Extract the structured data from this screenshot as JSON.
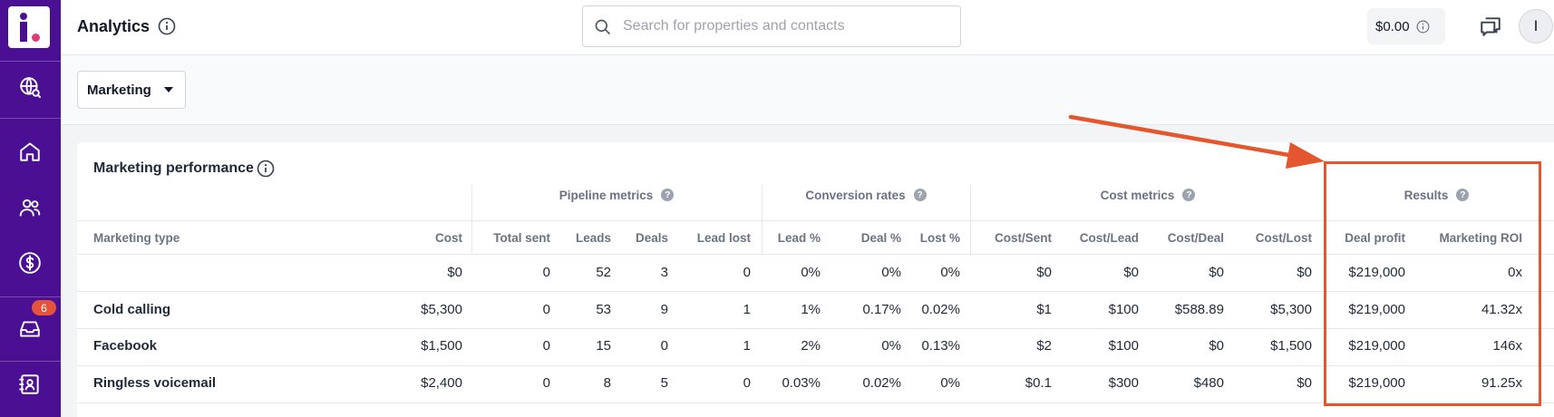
{
  "app": {
    "page_title": "Analytics",
    "accent": "#4b0f93",
    "inbox_badge": "6"
  },
  "sidebar": {
    "items": [
      {
        "name": "globe-search-icon"
      },
      {
        "name": "home-icon"
      },
      {
        "name": "users-icon"
      },
      {
        "name": "dollar-icon"
      },
      {
        "name": "inbox-icon"
      },
      {
        "name": "contacts-icon"
      }
    ]
  },
  "header": {
    "search_placeholder": "Search for properties and contacts",
    "search_value": "",
    "balance": "$0.00",
    "avatar_initial": "I"
  },
  "filter": {
    "selected": "Marketing"
  },
  "card": {
    "title": "Marketing performance",
    "groups": {
      "pipeline": "Pipeline metrics",
      "conversion": "Conversion rates",
      "cost": "Cost metrics",
      "results": "Results",
      "help_glyph": "?"
    },
    "columns": [
      "Marketing type",
      "Cost",
      "Total sent",
      "Leads",
      "Deals",
      "Lead lost",
      "Lead %",
      "Deal %",
      "Lost %",
      "Cost/Sent",
      "Cost/Lead",
      "Cost/Deal",
      "Cost/Lost",
      "Deal profit",
      "Marketing ROI"
    ],
    "rows": [
      [
        "",
        "$0",
        "0",
        "52",
        "3",
        "0",
        "0%",
        "0%",
        "0%",
        "$0",
        "$0",
        "$0",
        "$0",
        "$219,000",
        "0x"
      ],
      [
        "Cold calling",
        "$5,300",
        "0",
        "53",
        "9",
        "1",
        "1%",
        "0.17%",
        "0.02%",
        "$1",
        "$100",
        "$588.89",
        "$5,300",
        "$219,000",
        "41.32x"
      ],
      [
        "Facebook",
        "$1,500",
        "0",
        "15",
        "0",
        "1",
        "2%",
        "0%",
        "0.13%",
        "$2",
        "$100",
        "$0",
        "$1,500",
        "$219,000",
        "146x"
      ],
      [
        "Ringless voicemail",
        "$2,400",
        "0",
        "8",
        "5",
        "0",
        "0.03%",
        "0.02%",
        "0%",
        "$0.1",
        "$300",
        "$480",
        "$0",
        "$219,000",
        "91.25x"
      ]
    ]
  },
  "annotation": {
    "color": "#e4572e"
  }
}
